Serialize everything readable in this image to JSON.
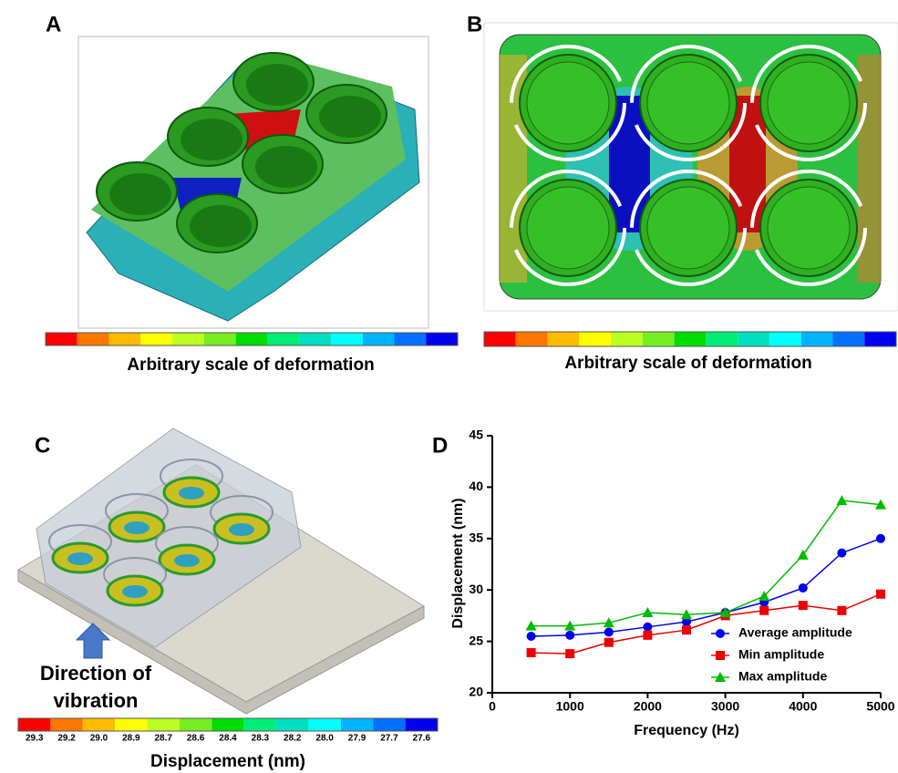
{
  "panels": {
    "A": {
      "label": "A",
      "caption": "Arbitrary scale of deformation"
    },
    "B": {
      "label": "B",
      "caption": "Arbitrary scale of deformation"
    },
    "C": {
      "label": "C",
      "annotation": "Direction of vibration",
      "colorbar_labels": [
        "29.3",
        "29.2",
        "29.0",
        "28.9",
        "28.7",
        "28.6",
        "28.4",
        "28.3",
        "28.2",
        "28.0",
        "27.9",
        "27.7",
        "27.6"
      ],
      "caption": "Displacement (nm)"
    },
    "D": {
      "label": "D"
    }
  },
  "chart_data": {
    "type": "line",
    "x_label": "Frequency (Hz)",
    "y_label": "Displacement (nm)",
    "x": [
      500,
      1000,
      1500,
      2000,
      2500,
      3000,
      3500,
      4000,
      4500,
      5000
    ],
    "series": [
      {
        "name": "Average amplitude",
        "color": "#0000ee",
        "marker": "circle",
        "values": [
          25.5,
          25.6,
          25.9,
          26.4,
          26.9,
          27.8,
          28.8,
          30.2,
          33.6,
          35.0
        ]
      },
      {
        "name": "Min amplitude",
        "color": "#ee0000",
        "marker": "square",
        "values": [
          23.9,
          23.8,
          24.9,
          25.6,
          26.1,
          27.5,
          28.0,
          28.5,
          28.0,
          29.6
        ]
      },
      {
        "name": "Max amplitude",
        "color": "#00bb00",
        "marker": "triangle",
        "values": [
          26.5,
          26.5,
          26.8,
          27.8,
          27.6,
          27.8,
          29.4,
          33.4,
          38.7,
          38.3
        ]
      }
    ],
    "xlim": [
      0,
      5000
    ],
    "xticks": [
      0,
      1000,
      2000,
      3000,
      4000,
      5000
    ],
    "ylim": [
      20,
      45
    ],
    "yticks": [
      20,
      25,
      30,
      35,
      40,
      45
    ],
    "legend": "lower right"
  }
}
